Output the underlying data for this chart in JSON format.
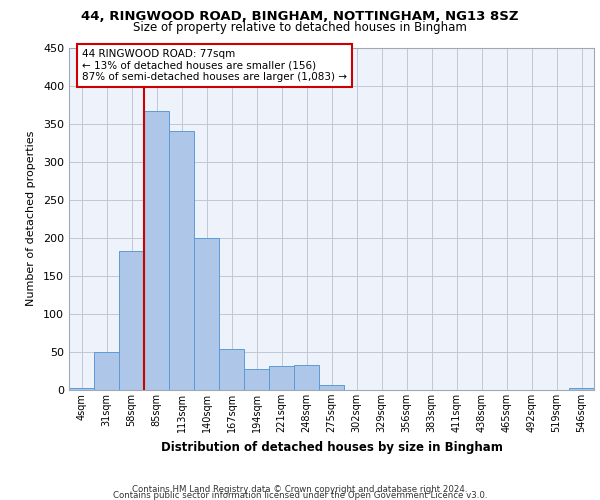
{
  "title_line1": "44, RINGWOOD ROAD, BINGHAM, NOTTINGHAM, NG13 8SZ",
  "title_line2": "Size of property relative to detached houses in Bingham",
  "xlabel": "Distribution of detached houses by size in Bingham",
  "ylabel": "Number of detached properties",
  "footer_line1": "Contains HM Land Registry data © Crown copyright and database right 2024.",
  "footer_line2": "Contains public sector information licensed under the Open Government Licence v3.0.",
  "bar_labels": [
    "4sqm",
    "31sqm",
    "58sqm",
    "85sqm",
    "113sqm",
    "140sqm",
    "167sqm",
    "194sqm",
    "221sqm",
    "248sqm",
    "275sqm",
    "302sqm",
    "329sqm",
    "356sqm",
    "383sqm",
    "411sqm",
    "438sqm",
    "465sqm",
    "492sqm",
    "519sqm",
    "546sqm"
  ],
  "bar_values": [
    3,
    50,
    182,
    367,
    340,
    200,
    54,
    27,
    32,
    33,
    6,
    0,
    0,
    0,
    0,
    0,
    0,
    0,
    0,
    0,
    3
  ],
  "bar_color": "#aec6e8",
  "bar_edge_color": "#5b9bd5",
  "background_color": "#eef3fb",
  "grid_color": "#c0c8d8",
  "vline_pos": 2.5,
  "vline_color": "#cc0000",
  "annotation_text": "44 RINGWOOD ROAD: 77sqm\n← 13% of detached houses are smaller (156)\n87% of semi-detached houses are larger (1,083) →",
  "annotation_box_color": "#cc0000",
  "ylim": [
    0,
    450
  ],
  "yticks": [
    0,
    50,
    100,
    150,
    200,
    250,
    300,
    350,
    400,
    450
  ]
}
